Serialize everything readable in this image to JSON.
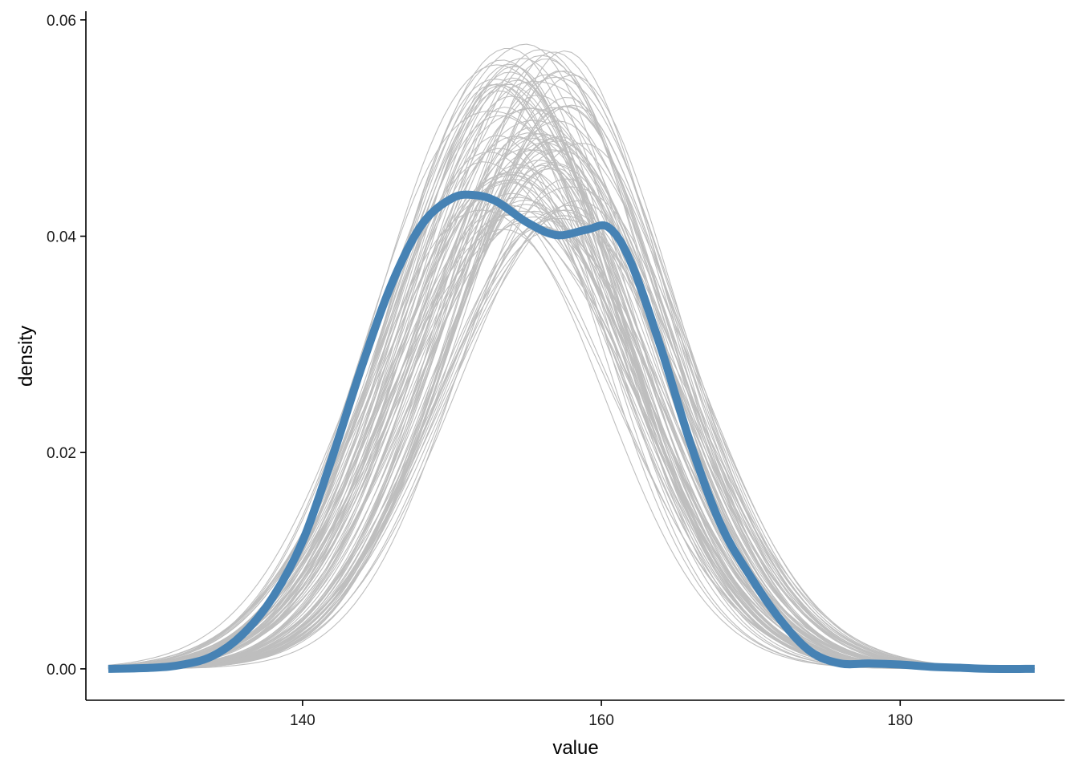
{
  "chart_data": {
    "type": "line",
    "title": "",
    "xlabel": "value",
    "ylabel": "density",
    "xlim": [
      125.5,
      191
    ],
    "ylim": [
      -0.0029,
      0.0608
    ],
    "x_ticks": [
      140,
      160,
      180
    ],
    "x_tick_labels": [
      "140",
      "160",
      "180"
    ],
    "y_ticks": [
      0,
      0.02,
      0.04,
      0.06
    ],
    "y_tick_labels": [
      "0.00",
      "0.02",
      "0.04",
      "0.06"
    ],
    "grid": false,
    "legend": "none",
    "colors": {
      "observed": "#4682b4",
      "replicates": "#bebebe"
    },
    "observed_series": {
      "x": [
        127,
        130,
        132,
        134,
        136,
        138,
        140,
        142,
        144,
        146,
        148,
        150,
        151.5,
        153,
        155,
        157,
        159,
        160.5,
        162,
        164,
        166,
        168,
        170,
        172,
        174,
        176,
        178,
        180,
        182,
        184,
        186,
        189
      ],
      "y": [
        0,
        0.0001,
        0.0004,
        0.0012,
        0.0032,
        0.0066,
        0.0118,
        0.0196,
        0.0281,
        0.0357,
        0.0411,
        0.0435,
        0.0438,
        0.0432,
        0.0413,
        0.0401,
        0.0406,
        0.0408,
        0.0375,
        0.0296,
        0.0207,
        0.0133,
        0.0085,
        0.0045,
        0.0016,
        0.0005,
        0.0005,
        0.0004,
        0.0002,
        0.0001,
        0,
        0
      ]
    },
    "replicate_series": {
      "count": 100,
      "x_range": [
        127,
        189
      ],
      "peak_range": [
        0.0405,
        0.0578
      ],
      "peak_location_range": [
        152,
        158.5
      ]
    }
  }
}
